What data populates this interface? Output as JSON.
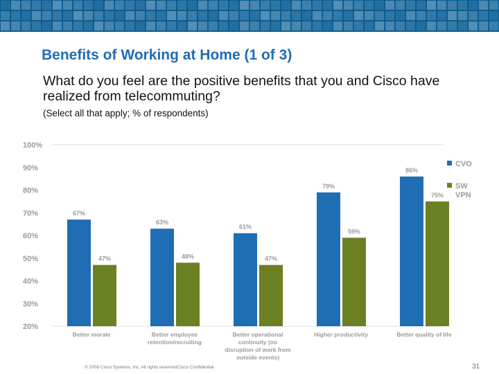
{
  "slide": {
    "title": "Benefits of Working at Home (1 of 3)",
    "subtitle": "What do you feel are the positive benefits that you and Cisco have realized from telecommuting?",
    "note": "(Select all that apply; % of respondents)",
    "footer_copyright": "© 2008 Cisco Systems, Inc. All rights reserved.",
    "footer_confidential": "Cisco Confidential",
    "page_number": "31",
    "brand_color": "#0b5e93"
  },
  "chart_data": {
    "type": "bar",
    "categories": [
      [
        "Better morale"
      ],
      [
        "Better employee",
        "retention/recruiting"
      ],
      [
        "Better operational",
        "continuity (no",
        "disruption of work from",
        "outside events)"
      ],
      [
        "Higher productivity"
      ],
      [
        "Better quality of life"
      ]
    ],
    "series": [
      {
        "name": "CVO",
        "values": [
          67,
          63,
          61,
          79,
          86
        ],
        "labels": [
          "67%",
          "63%",
          "61%",
          "79%",
          "86%"
        ],
        "color": "#1f6db3"
      },
      {
        "name": "SW VPN",
        "values": [
          47,
          48,
          47,
          59,
          75
        ],
        "labels": [
          "47%",
          "48%",
          "47%",
          "59%",
          "75%"
        ],
        "color": "#6b7f23"
      }
    ],
    "legend": [
      "CVO",
      "SW VPN"
    ],
    "legend_position": "right",
    "y_ticks": [
      "100%",
      "90%",
      "80%",
      "70%",
      "60%",
      "50%",
      "40%",
      "30%",
      "20%"
    ],
    "ylim": [
      20,
      100
    ],
    "grid": false
  }
}
